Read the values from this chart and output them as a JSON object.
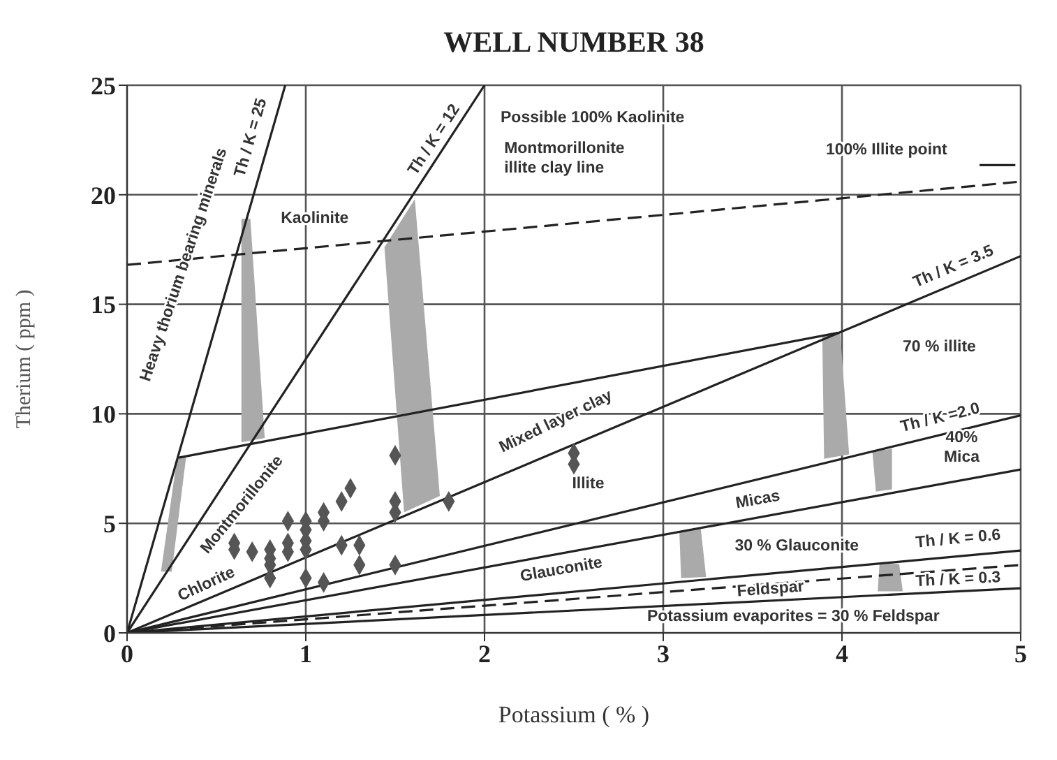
{
  "chart_data": {
    "type": "line",
    "title": "WELL NUMBER 38",
    "xlabel": "Potassium ( % )",
    "ylabel": "Therium ( ppm )",
    "xlim": [
      0,
      5
    ],
    "xticks": [
      0,
      1,
      2,
      3,
      4,
      5
    ],
    "ylim": [
      0,
      25
    ],
    "yticks": [
      0,
      5,
      10,
      15,
      20,
      25
    ],
    "grid": true,
    "legend": false,
    "marker": "none",
    "annotations": [
      "Heavy thorium bearing minerals",
      "Kaolinite",
      "Possible 100% Kaolinite",
      "Montmorillonite\nillite clay line",
      "100% Illite point",
      "70 % illite",
      "Mixed layer clay",
      "Illite",
      "40%\nMica",
      "Montmorillonite",
      "Chlorite",
      "Glauconite",
      "30 % Glauconite",
      "Potassium evaporites = 30 % Feldspar"
    ],
    "series": [
      {
        "type": "area",
        "color": "#aaaaaa",
        "x": [
          0.28,
          0.33,
          0.25,
          0.19
        ],
        "values": [
          8.0,
          8.0,
          2.8,
          2.8
        ]
      },
      {
        "type": "area",
        "color": "#aaaaaa",
        "x": [
          0.64,
          0.69,
          0.77,
          0.64
        ],
        "values": [
          18.9,
          18.9,
          8.9,
          8.7
        ]
      },
      {
        "type": "area",
        "color": "#aaaaaa",
        "x": [
          1.44,
          1.61,
          1.75,
          1.55
        ],
        "values": [
          17.6,
          19.8,
          6.25,
          5.5
        ]
      },
      {
        "type": "area",
        "color": "#aaaaaa",
        "x": [
          3.89,
          3.99,
          4.04,
          3.9
        ],
        "values": [
          13.5,
          13.7,
          8.15,
          7.95
        ]
      },
      {
        "type": "area",
        "color": "#aaaaaa",
        "x": [
          4.17,
          4.28,
          4.28,
          4.19
        ],
        "values": [
          8.3,
          8.4,
          6.55,
          6.45
        ]
      },
      {
        "type": "area",
        "color": "#aaaaaa",
        "x": [
          3.09,
          3.21,
          3.24,
          3.1
        ],
        "values": [
          4.65,
          4.75,
          2.55,
          2.5
        ]
      },
      {
        "type": "area",
        "color": "#aaaaaa",
        "x": [
          4.21,
          4.32,
          4.34,
          4.2
        ],
        "values": [
          3.15,
          3.15,
          1.9,
          1.9
        ]
      },
      {
        "name": "Th / K = 25",
        "color": "#222222",
        "x": [
          0,
          0.885
        ],
        "values": [
          0,
          25
        ]
      },
      {
        "name": "Th / K = 12",
        "color": "#222222",
        "x": [
          0,
          2.0
        ],
        "values": [
          0,
          25
        ]
      },
      {
        "name": "Th / K = 3.5",
        "color": "#222222",
        "x": [
          0,
          5
        ],
        "values": [
          0,
          17.2
        ]
      },
      {
        "name": "Th / K =2.0",
        "color": "#222222",
        "x": [
          0,
          5
        ],
        "values": [
          0,
          9.93
        ]
      },
      {
        "name": "Micas",
        "color": "#222222",
        "x": [
          0,
          5
        ],
        "values": [
          0,
          7.46
        ]
      },
      {
        "name": "Th / K = 0.6",
        "color": "#222222",
        "x": [
          0,
          5
        ],
        "values": [
          0,
          3.76
        ]
      },
      {
        "name": "Feldspar",
        "color": "#222222",
        "line_style": "dashed",
        "x": [
          0,
          5
        ],
        "values": [
          0,
          3.1
        ]
      },
      {
        "name": "Th / K = 0.3",
        "color": "#222222",
        "x": [
          0,
          5
        ],
        "values": [
          0,
          2.04
        ]
      },
      {
        "color": "#222222",
        "x": [
          0.29,
          3.98
        ],
        "values": [
          8.0,
          13.7
        ]
      },
      {
        "color": "#222222",
        "line_style": "dashed",
        "x": [
          0,
          5
        ],
        "values": [
          16.8,
          20.6
        ]
      },
      {
        "color": "#222222",
        "x": [
          4.77,
          4.97
        ],
        "values": [
          21.35,
          21.35
        ]
      },
      {
        "type": "scatter",
        "color": "#555555",
        "marker": "diamond",
        "x": [
          0.6,
          0.6,
          0.7,
          0.8,
          0.8,
          0.8,
          0.8,
          0.9,
          0.9,
          0.9,
          1.0,
          1.0,
          1.0,
          1.0,
          1.0,
          1.1,
          1.1,
          1.1,
          1.2,
          1.25,
          1.2,
          1.3,
          1.3,
          1.5,
          1.5,
          1.5,
          1.5,
          1.8,
          2.5,
          2.5
        ],
        "values": [
          4.1,
          3.8,
          3.7,
          3.8,
          3.4,
          3.1,
          2.5,
          5.1,
          4.1,
          3.7,
          5.1,
          4.7,
          4.2,
          3.8,
          2.5,
          5.5,
          5.1,
          2.3,
          6.0,
          6.6,
          4.0,
          4.0,
          3.1,
          8.1,
          6.0,
          5.5,
          3.1,
          6.0,
          8.2,
          7.7
        ]
      }
    ]
  }
}
